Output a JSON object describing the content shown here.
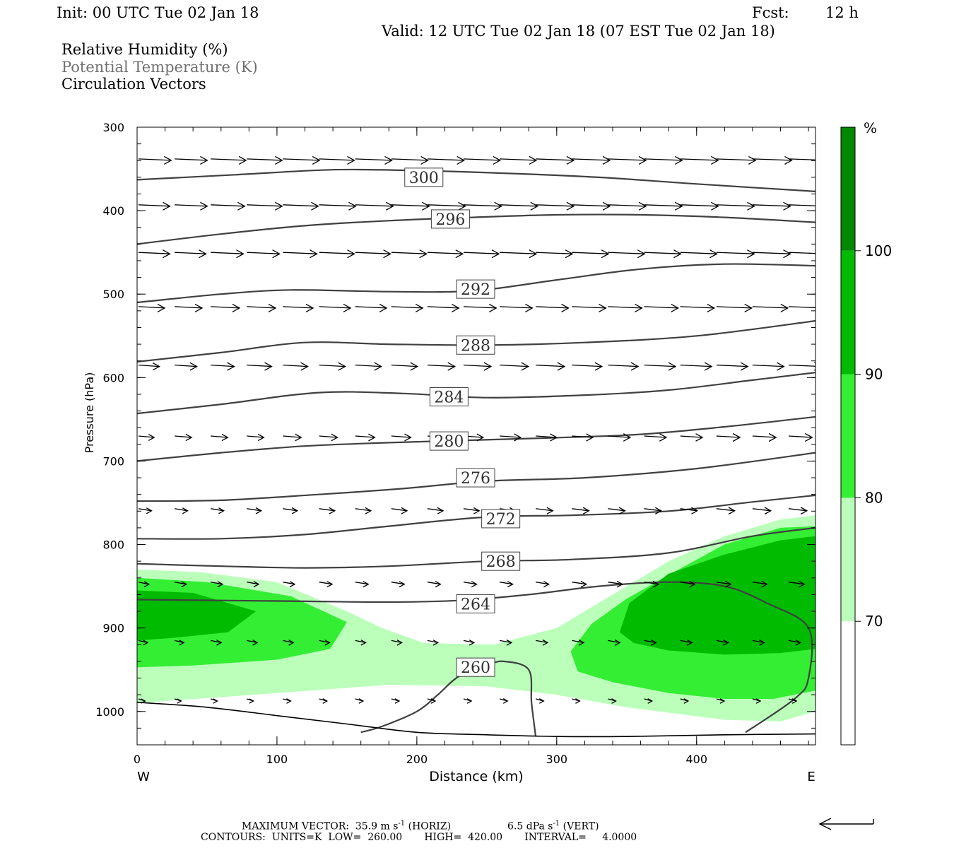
{
  "header": {
    "init": "Init: 00 UTC Tue 02 Jan 18",
    "fcst_label": "Fcst:",
    "fcst_value": "12 h",
    "valid": "Valid: 12 UTC Tue 02 Jan 18 (07 EST Tue 02 Jan 18)"
  },
  "fields": {
    "rh": "Relative Humidity (%)",
    "theta": "Potential Temperature (K)",
    "vectors": "Circulation Vectors"
  },
  "footer": {
    "max_vector": "MAXIMUM VECTOR:  35.9 m s",
    "max_vector_exp": "-1",
    "horiz": " (HORIZ)",
    "vert_val": "6.5 dPa s",
    "vert_exp": "-1",
    "vert": " (VERT)",
    "contours": "CONTOURS:  UNITS=K  LOW=  260.00       HIGH=  420.00       INTERVAL=     4.0000"
  },
  "chart_data": {
    "type": "cross-section",
    "xlabel": "Distance (km)",
    "ylabel": "Pressure (hPa)",
    "xlim": [
      0,
      485
    ],
    "ylim": [
      1040,
      300
    ],
    "x_ticks": [
      0,
      100,
      200,
      300,
      400
    ],
    "y_ticks": [
      300,
      400,
      500,
      600,
      700,
      800,
      900,
      1000
    ],
    "x_left_label": "W",
    "x_right_label": "E",
    "colorbar": {
      "unit": "%",
      "levels": [
        70,
        80,
        90,
        100
      ],
      "colors": [
        "#ffffff",
        "#bbffbb",
        "#33ee33",
        "#00bb00",
        "#008800"
      ]
    },
    "theta_contours": [
      {
        "value": 300,
        "label": "300",
        "label_at": [
          205,
          360
        ],
        "points": [
          [
            0,
            363
          ],
          [
            70,
            357
          ],
          [
            140,
            351
          ],
          [
            200,
            352
          ],
          [
            260,
            355
          ],
          [
            330,
            360
          ],
          [
            400,
            368
          ],
          [
            485,
            377
          ]
        ]
      },
      {
        "value": 296,
        "label": "296",
        "label_at": [
          224,
          410
        ],
        "points": [
          [
            0,
            440
          ],
          [
            60,
            428
          ],
          [
            120,
            418
          ],
          [
            180,
            412
          ],
          [
            240,
            408
          ],
          [
            300,
            405
          ],
          [
            360,
            405
          ],
          [
            420,
            408
          ],
          [
            485,
            414
          ]
        ]
      },
      {
        "value": 292,
        "label": "292",
        "label_at": [
          242,
          494
        ],
        "points": [
          [
            0,
            510
          ],
          [
            60,
            500
          ],
          [
            110,
            495
          ],
          [
            180,
            497
          ],
          [
            240,
            496
          ],
          [
            300,
            483
          ],
          [
            360,
            470
          ],
          [
            420,
            464
          ],
          [
            485,
            466
          ]
        ]
      },
      {
        "value": 288,
        "label": "288",
        "label_at": [
          242,
          561
        ],
        "points": [
          [
            0,
            581
          ],
          [
            60,
            570
          ],
          [
            120,
            558
          ],
          [
            180,
            560
          ],
          [
            250,
            561
          ],
          [
            320,
            558
          ],
          [
            400,
            550
          ],
          [
            485,
            532
          ]
        ]
      },
      {
        "value": 284,
        "label": "284",
        "label_at": [
          223,
          623
        ],
        "points": [
          [
            0,
            643
          ],
          [
            60,
            632
          ],
          [
            130,
            618
          ],
          [
            190,
            619
          ],
          [
            250,
            624
          ],
          [
            320,
            621
          ],
          [
            380,
            615
          ],
          [
            440,
            603
          ],
          [
            485,
            594
          ]
        ]
      },
      {
        "value": 280,
        "label": "280",
        "label_at": [
          223,
          676
        ],
        "points": [
          [
            0,
            700
          ],
          [
            60,
            690
          ],
          [
            120,
            682
          ],
          [
            180,
            678
          ],
          [
            240,
            675
          ],
          [
            300,
            672
          ],
          [
            360,
            668
          ],
          [
            420,
            659
          ],
          [
            485,
            647
          ]
        ]
      },
      {
        "value": 276,
        "label": "276",
        "label_at": [
          242,
          720
        ],
        "points": [
          [
            0,
            748
          ],
          [
            60,
            747
          ],
          [
            130,
            740
          ],
          [
            190,
            733
          ],
          [
            250,
            724
          ],
          [
            320,
            720
          ],
          [
            400,
            709
          ],
          [
            485,
            690
          ]
        ]
      },
      {
        "value": 272,
        "label": "272",
        "label_at": [
          260,
          769
        ],
        "points": [
          [
            0,
            793
          ],
          [
            60,
            793
          ],
          [
            120,
            788
          ],
          [
            180,
            778
          ],
          [
            250,
            767
          ],
          [
            310,
            765
          ],
          [
            380,
            760
          ],
          [
            440,
            749
          ],
          [
            485,
            741
          ]
        ]
      },
      {
        "value": 268,
        "label": "268",
        "label_at": [
          260,
          820
        ],
        "points": [
          [
            0,
            823
          ],
          [
            60,
            826
          ],
          [
            120,
            828
          ],
          [
            180,
            826
          ],
          [
            250,
            820
          ],
          [
            310,
            818
          ],
          [
            380,
            810
          ],
          [
            440,
            790
          ],
          [
            485,
            780
          ]
        ]
      },
      {
        "value": 264,
        "label": "264",
        "label_at": [
          242,
          871
        ],
        "points": [
          [
            0,
            866
          ],
          [
            60,
            867
          ],
          [
            120,
            868
          ],
          [
            180,
            869
          ],
          [
            230,
            867
          ],
          [
            280,
            860
          ],
          [
            330,
            850
          ],
          [
            380,
            845
          ],
          [
            420,
            850
          ],
          [
            450,
            870
          ],
          [
            480,
            900
          ],
          [
            480,
            960
          ],
          [
            470,
            985
          ],
          [
            435,
            1025
          ]
        ]
      },
      {
        "value": 260,
        "label": "260",
        "label_at": [
          242,
          947
        ],
        "points": [
          [
            160,
            1025
          ],
          [
            175,
            1018
          ],
          [
            200,
            1000
          ],
          [
            215,
            980
          ],
          [
            230,
            958
          ],
          [
            250,
            945
          ],
          [
            262,
            940
          ],
          [
            280,
            950
          ],
          [
            282,
            990
          ],
          [
            285,
            1030
          ]
        ]
      }
    ],
    "surface_line": [
      [
        0,
        989
      ],
      [
        50,
        995
      ],
      [
        100,
        1005
      ],
      [
        150,
        1015
      ],
      [
        200,
        1025
      ],
      [
        250,
        1028
      ],
      [
        300,
        1030
      ],
      [
        350,
        1030
      ],
      [
        420,
        1028
      ],
      [
        485,
        1027
      ]
    ],
    "rh_regions": [
      {
        "level": 70,
        "points": [
          [
            0,
            830
          ],
          [
            45,
            833
          ],
          [
            100,
            845
          ],
          [
            150,
            880
          ],
          [
            175,
            900
          ],
          [
            205,
            918
          ],
          [
            255,
            920
          ],
          [
            300,
            900
          ],
          [
            340,
            860
          ],
          [
            380,
            820
          ],
          [
            420,
            790
          ],
          [
            460,
            770
          ],
          [
            485,
            765
          ],
          [
            485,
            1000
          ],
          [
            460,
            1012
          ],
          [
            420,
            1010
          ],
          [
            350,
            995
          ],
          [
            300,
            980
          ],
          [
            250,
            970
          ],
          [
            180,
            968
          ],
          [
            100,
            978
          ],
          [
            0,
            990
          ]
        ]
      },
      {
        "level": 80,
        "points": [
          [
            0,
            840
          ],
          [
            50,
            845
          ],
          [
            110,
            862
          ],
          [
            150,
            893
          ],
          [
            138,
            925
          ],
          [
            100,
            938
          ],
          [
            40,
            945
          ],
          [
            0,
            947
          ]
        ]
      },
      {
        "level": 80,
        "points": [
          [
            310,
            928
          ],
          [
            325,
            895
          ],
          [
            350,
            865
          ],
          [
            385,
            832
          ],
          [
            420,
            800
          ],
          [
            460,
            780
          ],
          [
            485,
            778
          ],
          [
            485,
            975
          ],
          [
            455,
            985
          ],
          [
            420,
            985
          ],
          [
            380,
            978
          ],
          [
            340,
            965
          ],
          [
            315,
            952
          ]
        ]
      },
      {
        "level": 90,
        "points": [
          [
            0,
            855
          ],
          [
            40,
            858
          ],
          [
            85,
            880
          ],
          [
            65,
            905
          ],
          [
            25,
            912
          ],
          [
            0,
            915
          ]
        ]
      },
      {
        "level": 90,
        "points": [
          [
            345,
            905
          ],
          [
            352,
            870
          ],
          [
            380,
            835
          ],
          [
            420,
            812
          ],
          [
            460,
            795
          ],
          [
            485,
            790
          ],
          [
            485,
            925
          ],
          [
            460,
            930
          ],
          [
            420,
            932
          ],
          [
            380,
            927
          ],
          [
            355,
            918
          ]
        ]
      }
    ],
    "vector_rows": [
      {
        "p": 338,
        "dx": 0.0,
        "u": [
          25,
          25,
          27,
          27,
          28,
          27,
          28,
          28,
          28,
          28,
          28,
          29,
          29,
          29,
          29,
          29,
          30,
          30,
          30
        ]
      },
      {
        "p": 393,
        "dx": 0.0,
        "u": [
          24,
          25,
          26,
          27,
          27,
          28,
          29,
          29,
          29,
          29,
          29,
          29,
          29,
          29,
          29,
          29,
          29,
          29,
          29
        ]
      },
      {
        "p": 450,
        "dx": 0.0,
        "u": [
          24,
          24,
          25,
          25,
          26,
          27,
          27,
          27,
          27,
          27,
          28,
          28,
          28,
          28,
          28,
          28,
          29,
          29,
          29
        ]
      },
      {
        "p": 515,
        "dx": 0.0,
        "u": [
          20,
          21,
          22,
          22,
          23,
          24,
          24,
          24,
          24,
          25,
          25,
          25,
          26,
          26,
          26,
          26,
          27,
          27,
          27
        ]
      },
      {
        "p": 585,
        "dx": 0.0,
        "u": [
          16,
          17,
          18,
          19,
          19,
          20,
          20,
          20,
          21,
          21,
          22,
          22,
          23,
          23,
          24,
          24,
          24,
          24,
          25
        ]
      },
      {
        "p": 670,
        "dx": 0.0,
        "u": [
          12,
          13,
          13,
          13,
          14,
          14,
          15,
          15,
          15,
          15,
          16,
          16,
          16,
          17,
          17,
          17,
          18,
          18,
          18
        ]
      },
      {
        "p": 757,
        "dx": 0.0,
        "u": [
          10,
          10,
          10,
          11,
          11,
          12,
          12,
          12,
          12,
          12,
          12,
          13,
          13,
          13,
          13,
          13,
          14,
          14,
          14
        ]
      },
      {
        "p": 845,
        "dx": 0.0,
        "u": [
          8,
          9,
          9,
          9,
          9,
          10,
          10,
          10,
          10,
          10,
          10,
          10,
          11,
          11,
          11,
          11,
          11,
          11,
          12
        ]
      },
      {
        "p": 915,
        "dx": 0.0,
        "u": [
          7,
          7,
          8,
          8,
          8,
          8,
          8,
          8,
          8,
          8,
          9,
          9,
          9,
          9,
          9,
          9,
          9,
          9,
          9
        ]
      },
      {
        "p": 985,
        "dx": 0.0,
        "u": [
          5,
          5,
          5,
          5,
          6,
          6,
          6,
          6,
          6,
          6,
          6,
          6,
          6,
          6,
          6,
          6,
          6,
          6,
          6
        ]
      }
    ]
  }
}
